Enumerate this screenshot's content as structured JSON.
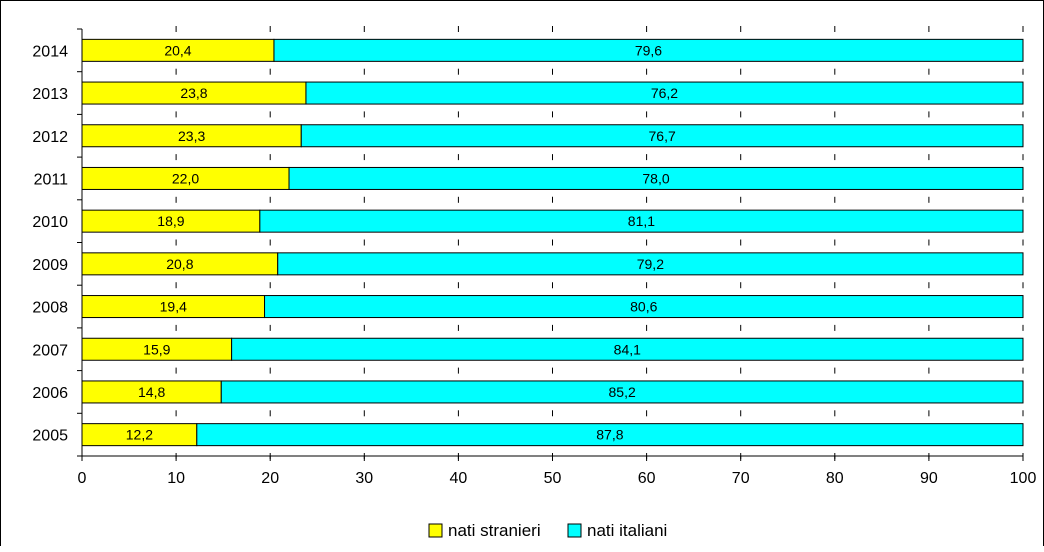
{
  "chart_data": {
    "type": "bar",
    "orientation": "horizontal",
    "stacked": true,
    "categories": [
      "2014",
      "2013",
      "2012",
      "2011",
      "2010",
      "2009",
      "2008",
      "2007",
      "2006",
      "2005"
    ],
    "series": [
      {
        "name": "nati stranieri",
        "color": "#ffff00",
        "values": [
          20.4,
          23.8,
          23.3,
          22.0,
          18.9,
          20.8,
          19.4,
          15.9,
          14.8,
          12.2
        ],
        "labels": [
          "20,4",
          "23,8",
          "23,3",
          "22,0",
          "18,9",
          "20,8",
          "19,4",
          "15,9",
          "14,8",
          "12,2"
        ]
      },
      {
        "name": "nati italiani",
        "color": "#00ffff",
        "values": [
          79.6,
          76.2,
          76.7,
          78.0,
          81.1,
          79.2,
          80.6,
          84.1,
          85.2,
          87.8
        ],
        "labels": [
          "79,6",
          "76,2",
          "76,7",
          "78,0",
          "81,1",
          "79,2",
          "80,6",
          "84,1",
          "85,2",
          "87,8"
        ]
      }
    ],
    "xlim": [
      0,
      100
    ],
    "xticks": [
      "0",
      "10",
      "20",
      "30",
      "40",
      "50",
      "60",
      "70",
      "80",
      "90",
      "100"
    ],
    "title": "",
    "xlabel": "",
    "ylabel": "",
    "grid": false,
    "legend": "bottom-center"
  }
}
